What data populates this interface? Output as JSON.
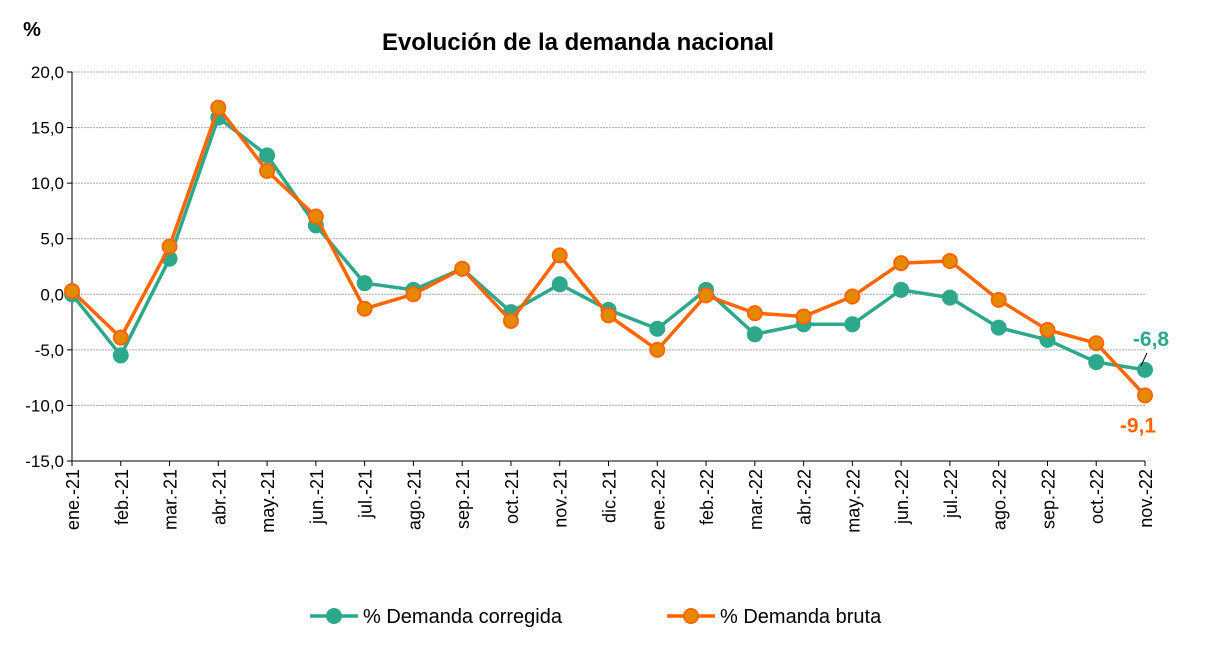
{
  "chart_data": {
    "type": "line",
    "title": "Evolución de la demanda nacional",
    "ylabel": "%",
    "ylim": [
      -15,
      20
    ],
    "yticks": [
      "-15,0",
      "-10,0",
      "-5,0",
      "0,0",
      "5,0",
      "10,0",
      "15,0",
      "20,0"
    ],
    "grid": true,
    "legend": "bottom",
    "categories": [
      "ene.-21",
      "feb.-21",
      "mar.-21",
      "abr.-21",
      "may.-21",
      "jun.-21",
      "jul.-21",
      "ago.-21",
      "sep.-21",
      "oct.-21",
      "nov.-21",
      "dic.-21",
      "ene.-22",
      "feb.-22",
      "mar.-22",
      "abr.-22",
      "may.-22",
      "jun.-22",
      "jul.-22",
      "ago.-22",
      "sep.-22",
      "oct.-22",
      "nov.-22"
    ],
    "series": [
      {
        "name": "% Demanda corregida",
        "color": "#2EA88A",
        "marker_fill": "#2EA88A",
        "values": [
          0.0,
          -5.5,
          3.2,
          15.9,
          12.5,
          6.2,
          1.0,
          0.4,
          2.3,
          -1.6,
          0.9,
          -1.4,
          -3.1,
          0.4,
          -3.6,
          -2.7,
          -2.7,
          0.4,
          -0.3,
          -3.0,
          -4.1,
          -6.1,
          -6.8
        ],
        "end_label": "-6,8"
      },
      {
        "name": "% Demanda bruta",
        "color": "#FF6600",
        "marker_fill": "#E58A00",
        "values": [
          0.3,
          -3.9,
          4.3,
          16.8,
          11.1,
          7.0,
          -1.3,
          0.0,
          2.3,
          -2.4,
          3.5,
          -1.9,
          -5.0,
          -0.1,
          -1.7,
          -2.0,
          -0.2,
          2.8,
          3.0,
          -0.5,
          -3.2,
          -4.4,
          -9.1
        ],
        "end_label": "-9,1"
      }
    ]
  }
}
